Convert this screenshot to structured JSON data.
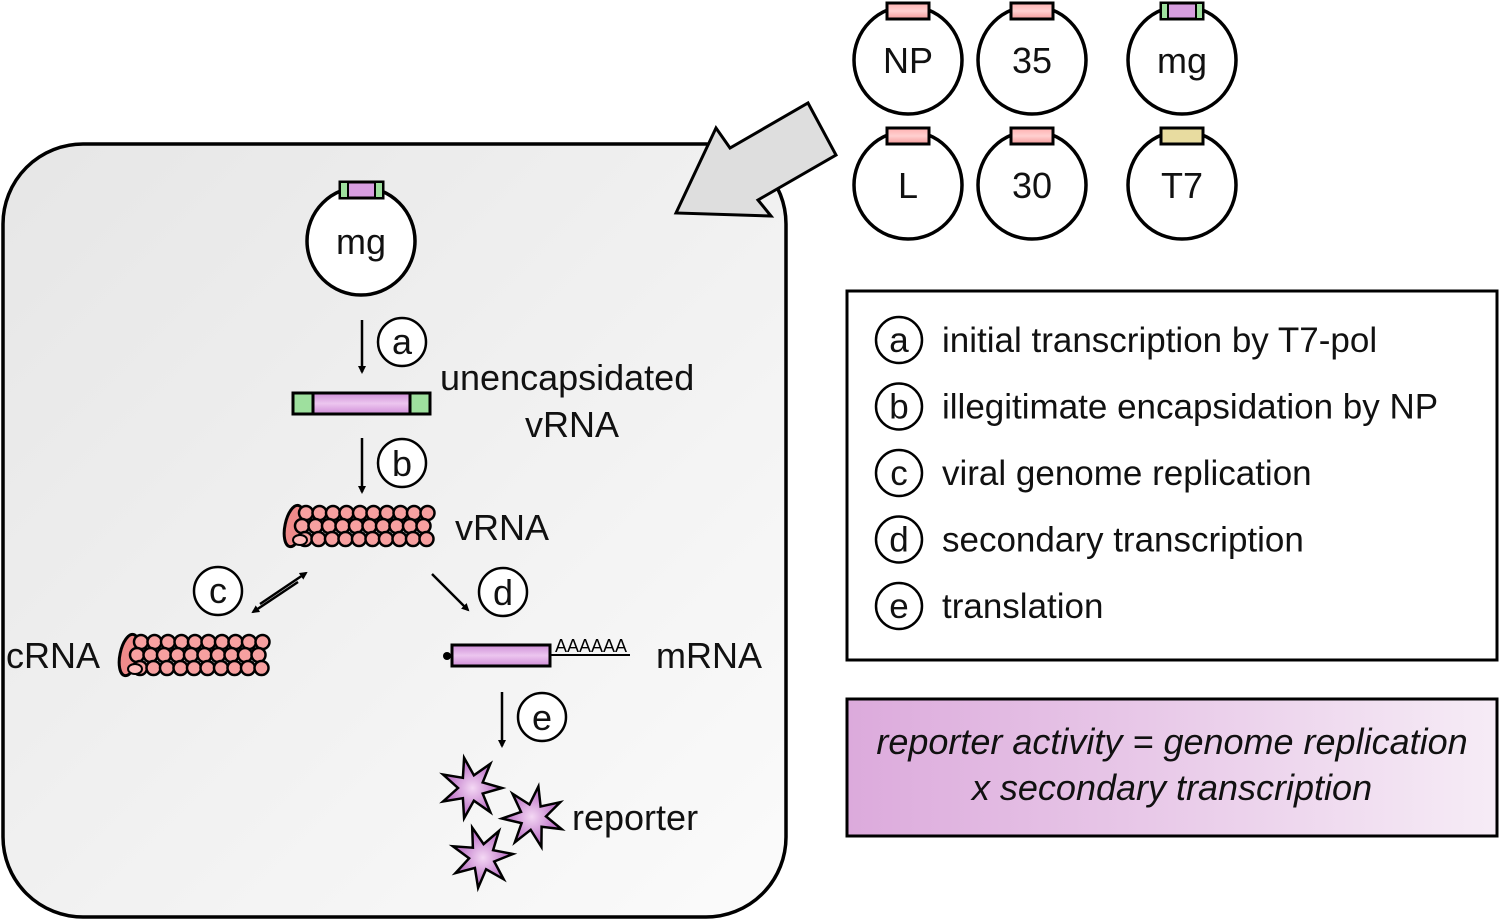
{
  "plasmids": [
    {
      "label": "NP",
      "insert": "pink"
    },
    {
      "label": "35",
      "insert": "pink"
    },
    {
      "label": "mg",
      "insert": "minigenome"
    },
    {
      "label": "L",
      "insert": "pink"
    },
    {
      "label": "30",
      "insert": "pink"
    },
    {
      "label": "T7",
      "insert": "yellow"
    }
  ],
  "cell": {
    "plasmid_label": "mg",
    "steps": {
      "a": "a",
      "b": "b",
      "c": "c",
      "d": "d",
      "e": "e"
    },
    "unencapsidated_line1": "unencapsidated",
    "unencapsidated_line2": "vRNA",
    "vrna_label": "vRNA",
    "crna_label": "cRNA",
    "mrna_label": "mRNA",
    "polya": "AAAAAA",
    "reporter_label": "reporter"
  },
  "legend": [
    {
      "letter": "a",
      "text": "initial transcription by T7-pol"
    },
    {
      "letter": "b",
      "text": "illegitimate encapsidation by NP"
    },
    {
      "letter": "c",
      "text": "viral genome replication"
    },
    {
      "letter": "d",
      "text": "secondary transcription"
    },
    {
      "letter": "e",
      "text": "translation"
    }
  ],
  "formula": {
    "line1": "reporter activity = genome replication",
    "line2": "x secondary transcription"
  },
  "colors": {
    "np": "#f08a8a",
    "np_light": "#ffc0c0",
    "purple": "#d79ee0",
    "green": "#9ee09e",
    "yellow": "#e8dca0",
    "arrow_gray": "#dedede"
  }
}
